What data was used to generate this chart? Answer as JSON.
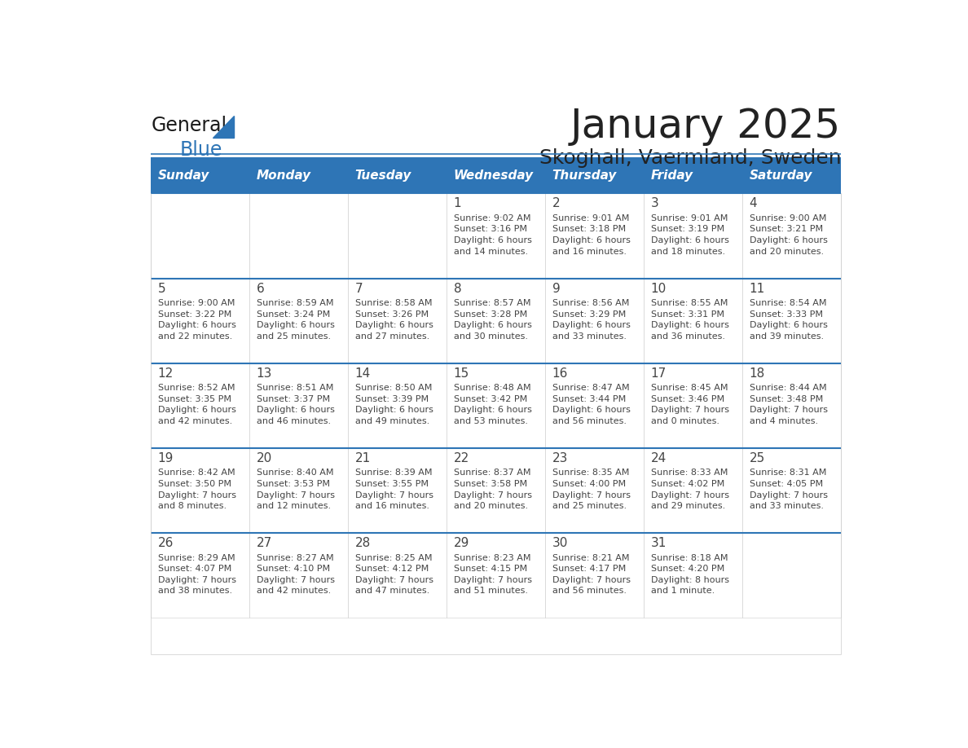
{
  "title": "January 2025",
  "subtitle": "Skoghall, Vaermland, Sweden",
  "days_of_week": [
    "Sunday",
    "Monday",
    "Tuesday",
    "Wednesday",
    "Thursday",
    "Friday",
    "Saturday"
  ],
  "header_bg": "#2E75B6",
  "header_text": "#FFFFFF",
  "cell_bg_white": "#FFFFFF",
  "border_color": "#2E75B6",
  "cell_border_color": "#cccccc",
  "text_color": "#444444",
  "title_color": "#222222",
  "calendar_data": [
    [
      null,
      null,
      null,
      {
        "day": 1,
        "sunrise": "9:02 AM",
        "sunset": "3:16 PM",
        "daylight": "6 hours and 14 minutes."
      },
      {
        "day": 2,
        "sunrise": "9:01 AM",
        "sunset": "3:18 PM",
        "daylight": "6 hours and 16 minutes."
      },
      {
        "day": 3,
        "sunrise": "9:01 AM",
        "sunset": "3:19 PM",
        "daylight": "6 hours and 18 minutes."
      },
      {
        "day": 4,
        "sunrise": "9:00 AM",
        "sunset": "3:21 PM",
        "daylight": "6 hours and 20 minutes."
      }
    ],
    [
      {
        "day": 5,
        "sunrise": "9:00 AM",
        "sunset": "3:22 PM",
        "daylight": "6 hours and 22 minutes."
      },
      {
        "day": 6,
        "sunrise": "8:59 AM",
        "sunset": "3:24 PM",
        "daylight": "6 hours and 25 minutes."
      },
      {
        "day": 7,
        "sunrise": "8:58 AM",
        "sunset": "3:26 PM",
        "daylight": "6 hours and 27 minutes."
      },
      {
        "day": 8,
        "sunrise": "8:57 AM",
        "sunset": "3:28 PM",
        "daylight": "6 hours and 30 minutes."
      },
      {
        "day": 9,
        "sunrise": "8:56 AM",
        "sunset": "3:29 PM",
        "daylight": "6 hours and 33 minutes."
      },
      {
        "day": 10,
        "sunrise": "8:55 AM",
        "sunset": "3:31 PM",
        "daylight": "6 hours and 36 minutes."
      },
      {
        "day": 11,
        "sunrise": "8:54 AM",
        "sunset": "3:33 PM",
        "daylight": "6 hours and 39 minutes."
      }
    ],
    [
      {
        "day": 12,
        "sunrise": "8:52 AM",
        "sunset": "3:35 PM",
        "daylight": "6 hours and 42 minutes."
      },
      {
        "day": 13,
        "sunrise": "8:51 AM",
        "sunset": "3:37 PM",
        "daylight": "6 hours and 46 minutes."
      },
      {
        "day": 14,
        "sunrise": "8:50 AM",
        "sunset": "3:39 PM",
        "daylight": "6 hours and 49 minutes."
      },
      {
        "day": 15,
        "sunrise": "8:48 AM",
        "sunset": "3:42 PM",
        "daylight": "6 hours and 53 minutes."
      },
      {
        "day": 16,
        "sunrise": "8:47 AM",
        "sunset": "3:44 PM",
        "daylight": "6 hours and 56 minutes."
      },
      {
        "day": 17,
        "sunrise": "8:45 AM",
        "sunset": "3:46 PM",
        "daylight": "7 hours and 0 minutes."
      },
      {
        "day": 18,
        "sunrise": "8:44 AM",
        "sunset": "3:48 PM",
        "daylight": "7 hours and 4 minutes."
      }
    ],
    [
      {
        "day": 19,
        "sunrise": "8:42 AM",
        "sunset": "3:50 PM",
        "daylight": "7 hours and 8 minutes."
      },
      {
        "day": 20,
        "sunrise": "8:40 AM",
        "sunset": "3:53 PM",
        "daylight": "7 hours and 12 minutes."
      },
      {
        "day": 21,
        "sunrise": "8:39 AM",
        "sunset": "3:55 PM",
        "daylight": "7 hours and 16 minutes."
      },
      {
        "day": 22,
        "sunrise": "8:37 AM",
        "sunset": "3:58 PM",
        "daylight": "7 hours and 20 minutes."
      },
      {
        "day": 23,
        "sunrise": "8:35 AM",
        "sunset": "4:00 PM",
        "daylight": "7 hours and 25 minutes."
      },
      {
        "day": 24,
        "sunrise": "8:33 AM",
        "sunset": "4:02 PM",
        "daylight": "7 hours and 29 minutes."
      },
      {
        "day": 25,
        "sunrise": "8:31 AM",
        "sunset": "4:05 PM",
        "daylight": "7 hours and 33 minutes."
      }
    ],
    [
      {
        "day": 26,
        "sunrise": "8:29 AM",
        "sunset": "4:07 PM",
        "daylight": "7 hours and 38 minutes."
      },
      {
        "day": 27,
        "sunrise": "8:27 AM",
        "sunset": "4:10 PM",
        "daylight": "7 hours and 42 minutes."
      },
      {
        "day": 28,
        "sunrise": "8:25 AM",
        "sunset": "4:12 PM",
        "daylight": "7 hours and 47 minutes."
      },
      {
        "day": 29,
        "sunrise": "8:23 AM",
        "sunset": "4:15 PM",
        "daylight": "7 hours and 51 minutes."
      },
      {
        "day": 30,
        "sunrise": "8:21 AM",
        "sunset": "4:17 PM",
        "daylight": "7 hours and 56 minutes."
      },
      {
        "day": 31,
        "sunrise": "8:18 AM",
        "sunset": "4:20 PM",
        "daylight": "8 hours and 1 minute."
      },
      null
    ]
  ],
  "logo_text_general": "General",
  "logo_text_blue": "Blue",
  "logo_triangle_color": "#2E75B6"
}
